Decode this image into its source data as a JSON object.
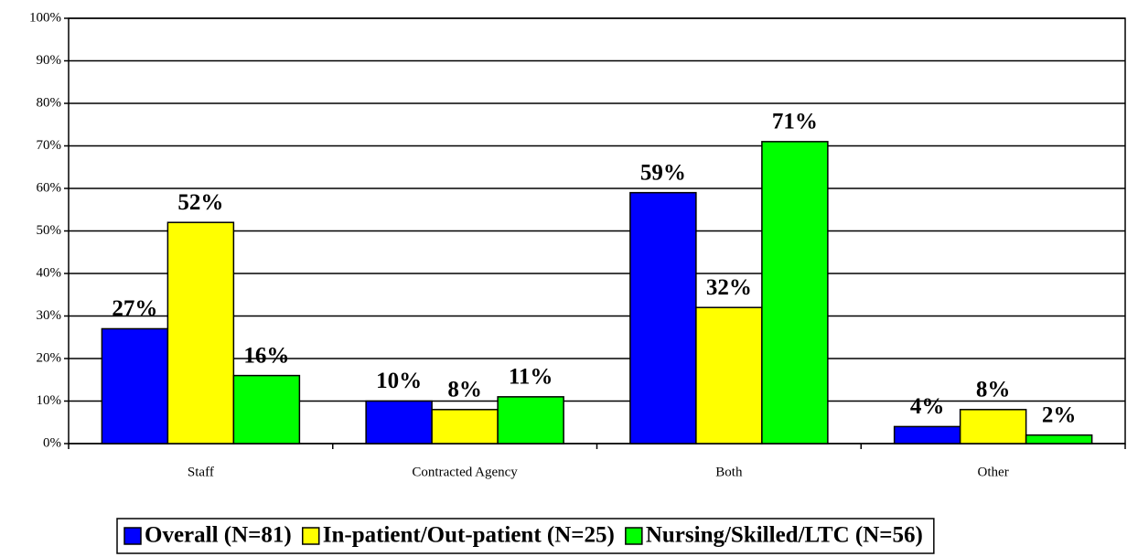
{
  "chart_data": {
    "type": "bar",
    "categories": [
      "Staff",
      "Contracted Agency",
      "Both",
      "Other"
    ],
    "series": [
      {
        "name": "Overall (N=81)",
        "color": "#0000ff",
        "values": [
          27,
          10,
          59,
          4
        ],
        "value_labels": [
          "27%",
          "10%",
          "59%",
          "4%"
        ]
      },
      {
        "name": "In-patient/Out-patient (N=25)",
        "color": "#ffff00",
        "values": [
          52,
          8,
          32,
          8
        ],
        "value_labels": [
          "52%",
          "8%",
          "32%",
          "8%"
        ]
      },
      {
        "name": "Nursing/Skilled/LTC (N=56)",
        "color": "#00ff00",
        "values": [
          16,
          11,
          71,
          2
        ],
        "value_labels": [
          "16%",
          "11%",
          "71%",
          "2%"
        ]
      }
    ],
    "ylim": [
      0,
      100
    ],
    "yticks": [
      {
        "value": 0,
        "label": "0%"
      },
      {
        "value": 10,
        "label": "10%"
      },
      {
        "value": 20,
        "label": "20%"
      },
      {
        "value": 30,
        "label": "30%"
      },
      {
        "value": 40,
        "label": "40%"
      },
      {
        "value": 50,
        "label": "50%"
      },
      {
        "value": 60,
        "label": "60%"
      },
      {
        "value": 70,
        "label": "70%"
      },
      {
        "value": 80,
        "label": "80%"
      },
      {
        "value": 90,
        "label": "90%"
      },
      {
        "value": 100,
        "label": "100%"
      }
    ],
    "grid": true,
    "legend": "bottom"
  }
}
